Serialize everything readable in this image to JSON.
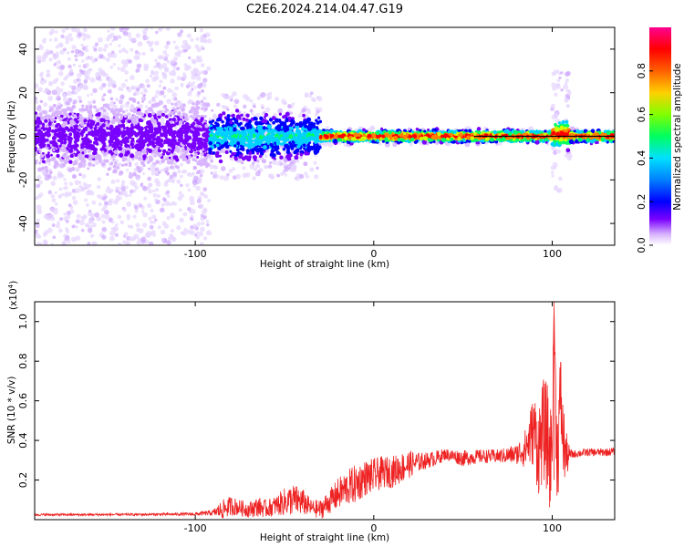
{
  "title": "C2E6.2024.214.04.47.G19",
  "chart_data": [
    {
      "type": "heatmap",
      "xlabel": "Height of straight line (km)",
      "ylabel": "Frequency (Hz)",
      "xlim": [
        -190,
        135
      ],
      "ylim": [
        -50,
        50
      ],
      "x_ticks": [
        "-100",
        "0",
        "100"
      ],
      "x_tick_values": [
        -100,
        0,
        100
      ],
      "y_ticks": [
        "40",
        "20",
        "0",
        "-20",
        "-40"
      ],
      "y_tick_values": [
        40,
        20,
        0,
        -20,
        -40
      ],
      "colorbar": {
        "label": "Normalized spectral amplitude",
        "range": [
          0,
          1
        ],
        "ticks": [
          "0.0",
          "0.2",
          "0.4",
          "0.6",
          "0.8"
        ],
        "tick_values": [
          0.0,
          0.2,
          0.4,
          0.6,
          0.8
        ],
        "colors": [
          "#ffffff",
          "#d8b4ff",
          "#7a00ff",
          "#0000ff",
          "#00d0ff",
          "#00ff60",
          "#d0ff00",
          "#ff8000",
          "#ff0000",
          "#ff0090"
        ]
      },
      "regions": [
        {
          "x_range": [
            -190,
            -92
          ],
          "noise_band_hz": [
            -50,
            50
          ],
          "core_band_hz": [
            -12,
            12
          ]
        },
        {
          "x_range": [
            -92,
            -30
          ],
          "noise_band_hz": [
            -20,
            20
          ],
          "core_band_hz": [
            -8,
            8
          ]
        },
        {
          "x_range": [
            -30,
            100
          ],
          "noise_band_hz": [
            -4,
            4
          ],
          "core_band_hz": [
            -2,
            2
          ]
        },
        {
          "x_range": [
            100,
            110
          ],
          "noise_band_hz": [
            -25,
            30
          ],
          "core_band_hz": [
            -4,
            6
          ]
        },
        {
          "x_range": [
            110,
            135
          ],
          "noise_band_hz": [
            -3,
            3
          ],
          "core_band_hz": [
            -2,
            2
          ]
        }
      ]
    },
    {
      "type": "line",
      "xlabel": "Height of straight line (km)",
      "ylabel": "SNR (10 * v/v)",
      "y_multiplier_label": "(x10",
      "y_multiplier_exp": "4",
      "y_multiplier_close": ")",
      "xlim": [
        -190,
        135
      ],
      "ylim": [
        0,
        11000
      ],
      "x_ticks": [
        "-100",
        "0",
        "100"
      ],
      "x_tick_values": [
        -100,
        0,
        100
      ],
      "y_ticks": [
        "1.0",
        "0.8",
        "0.6",
        "0.4",
        "0.2"
      ],
      "y_tick_values": [
        10000,
        8000,
        6000,
        4000,
        2000
      ],
      "color": "#ee2222",
      "series": [
        {
          "x": [
            -190,
            -160,
            -130,
            -100,
            -90,
            -85,
            -80,
            -75,
            -70,
            -65,
            -60,
            -55,
            -50,
            -45,
            -40,
            -35,
            -30,
            -25,
            -20,
            -15,
            -10,
            -5,
            0,
            5,
            10,
            15,
            20,
            25,
            30,
            35,
            40,
            50,
            60,
            70,
            80,
            85,
            88,
            90,
            92,
            95,
            97,
            99,
            100,
            101,
            102,
            103,
            104,
            105,
            106,
            108,
            110,
            112,
            115,
            120,
            125,
            130,
            135
          ],
          "y": [
            250,
            250,
            260,
            280,
            350,
            500,
            700,
            600,
            500,
            650,
            550,
            700,
            900,
            1000,
            900,
            600,
            500,
            900,
            1300,
            1600,
            1800,
            2100,
            2200,
            2400,
            2400,
            2600,
            2800,
            2900,
            3000,
            3100,
            3300,
            3100,
            3200,
            3200,
            3300,
            3600,
            4200,
            4600,
            3500,
            4500,
            4200,
            3000,
            4000,
            11000,
            5600,
            3000,
            5500,
            6000,
            4000,
            3200,
            3300,
            3300,
            3350,
            3400,
            3400,
            3400,
            3450
          ],
          "amp": [
            60,
            60,
            60,
            80,
            150,
            500,
            500,
            400,
            400,
            500,
            450,
            500,
            700,
            800,
            700,
            400,
            500,
            600,
            800,
            900,
            1000,
            900,
            900,
            800,
            800,
            800,
            700,
            500,
            400,
            400,
            300,
            400,
            350,
            350,
            500,
            1000,
            1600,
            1800,
            2400,
            2600,
            2800,
            3000,
            2000,
            0,
            2200,
            3000,
            2500,
            2600,
            2200,
            1200,
            250,
            200,
            200,
            200,
            200,
            200,
            200
          ]
        }
      ]
    }
  ]
}
